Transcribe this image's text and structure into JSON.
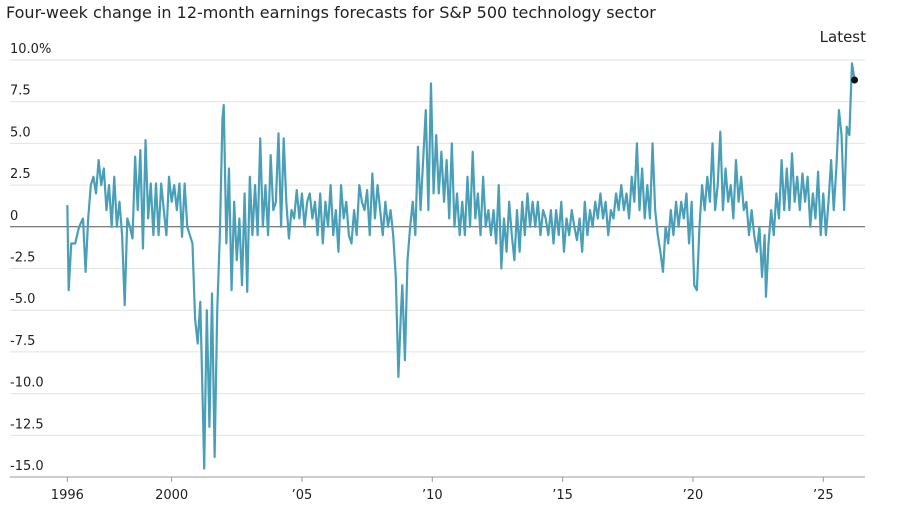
{
  "chart_data": {
    "type": "line",
    "title": "Four-week change in 12-month earnings forecasts for S&P 500 technology sector",
    "annotations": [
      {
        "text": "Latest"
      }
    ],
    "color": "#4a9fb8",
    "grid": true,
    "xlim": [
      1993.8,
      2026.6
    ],
    "xticks": [
      1996,
      2000,
      {
        "value": 2005,
        "label": "’05"
      },
      {
        "value": 2010,
        "label": "’10"
      },
      {
        "value": 2015,
        "label": "’15"
      },
      {
        "value": 2020,
        "label": "’20"
      },
      {
        "value": 2025,
        "label": "’25"
      }
    ],
    "ylim": [
      -15,
      10
    ],
    "yticks": [
      {
        "value": 10,
        "label": "10.0%"
      },
      7.5,
      {
        "value": 5,
        "label": "5.0"
      },
      2.5,
      0,
      -2.5,
      {
        "value": -5,
        "label": "-5.0"
      },
      -7.5,
      {
        "value": -10,
        "label": "-10.0"
      },
      -12.5,
      {
        "value": -15,
        "label": "-15.0"
      }
    ],
    "x": [
      1996.0,
      1996.05,
      1996.15,
      1996.3,
      1996.45,
      1996.6,
      1996.7,
      1996.8,
      1996.9,
      1997.0,
      1997.1,
      1997.2,
      1997.3,
      1997.4,
      1997.5,
      1997.6,
      1997.7,
      1997.8,
      1997.9,
      1998.0,
      1998.1,
      1998.2,
      1998.3,
      1998.4,
      1998.5,
      1998.6,
      1998.7,
      1998.8,
      1998.9,
      1999.0,
      1999.1,
      1999.2,
      1999.3,
      1999.4,
      1999.5,
      1999.6,
      1999.7,
      1999.8,
      1999.9,
      2000.0,
      2000.1,
      2000.2,
      2000.3,
      2000.4,
      2000.5,
      2000.6,
      2000.7,
      2000.8,
      2000.9,
      2001.0,
      2001.1,
      2001.2,
      2001.25,
      2001.35,
      2001.45,
      2001.55,
      2001.65,
      2001.75,
      2001.85,
      2001.95,
      2002.0,
      2002.1,
      2002.2,
      2002.3,
      2002.4,
      2002.5,
      2002.6,
      2002.7,
      2002.8,
      2002.9,
      2003.0,
      2003.1,
      2003.2,
      2003.3,
      2003.4,
      2003.5,
      2003.6,
      2003.7,
      2003.8,
      2003.9,
      2004.0,
      2004.1,
      2004.2,
      2004.3,
      2004.4,
      2004.5,
      2004.6,
      2004.7,
      2004.8,
      2004.9,
      2005.0,
      2005.1,
      2005.2,
      2005.3,
      2005.4,
      2005.5,
      2005.6,
      2005.7,
      2005.8,
      2005.9,
      2006.0,
      2006.1,
      2006.2,
      2006.3,
      2006.4,
      2006.5,
      2006.6,
      2006.7,
      2006.8,
      2006.9,
      2007.0,
      2007.1,
      2007.2,
      2007.3,
      2007.4,
      2007.5,
      2007.6,
      2007.7,
      2007.8,
      2007.9,
      2008.0,
      2008.1,
      2008.2,
      2008.3,
      2008.4,
      2008.5,
      2008.6,
      2008.7,
      2008.8,
      2008.85,
      2008.95,
      2009.05,
      2009.15,
      2009.25,
      2009.35,
      2009.45,
      2009.55,
      2009.65,
      2009.75,
      2009.85,
      2009.95,
      2010.05,
      2010.15,
      2010.25,
      2010.35,
      2010.45,
      2010.55,
      2010.65,
      2010.75,
      2010.85,
      2010.95,
      2011.05,
      2011.15,
      2011.25,
      2011.35,
      2011.45,
      2011.55,
      2011.65,
      2011.75,
      2011.85,
      2011.95,
      2012.05,
      2012.15,
      2012.25,
      2012.35,
      2012.45,
      2012.55,
      2012.65,
      2012.75,
      2012.85,
      2012.95,
      2013.05,
      2013.15,
      2013.25,
      2013.35,
      2013.45,
      2013.55,
      2013.65,
      2013.75,
      2013.85,
      2013.95,
      2014.05,
      2014.15,
      2014.25,
      2014.35,
      2014.45,
      2014.55,
      2014.65,
      2014.75,
      2014.85,
      2014.95,
      2015.05,
      2015.15,
      2015.25,
      2015.35,
      2015.45,
      2015.55,
      2015.65,
      2015.75,
      2015.85,
      2015.95,
      2016.05,
      2016.15,
      2016.25,
      2016.35,
      2016.45,
      2016.55,
      2016.65,
      2016.75,
      2016.85,
      2016.95,
      2017.05,
      2017.15,
      2017.25,
      2017.35,
      2017.45,
      2017.55,
      2017.65,
      2017.75,
      2017.85,
      2017.95,
      2018.05,
      2018.15,
      2018.25,
      2018.35,
      2018.45,
      2018.55,
      2018.65,
      2018.75,
      2018.85,
      2018.95,
      2019.05,
      2019.15,
      2019.25,
      2019.35,
      2019.45,
      2019.55,
      2019.65,
      2019.75,
      2019.85,
      2019.95,
      2020.05,
      2020.15,
      2020.25,
      2020.35,
      2020.45,
      2020.55,
      2020.65,
      2020.75,
      2020.85,
      2020.95,
      2021.05,
      2021.15,
      2021.25,
      2021.35,
      2021.45,
      2021.55,
      2021.65,
      2021.75,
      2021.85,
      2021.95,
      2022.05,
      2022.15,
      2022.25,
      2022.35,
      2022.45,
      2022.55,
      2022.65,
      2022.75,
      2022.8,
      2022.9,
      2023.0,
      2023.1,
      2023.2,
      2023.3,
      2023.4,
      2023.5,
      2023.6,
      2023.7,
      2023.8,
      2023.9,
      2024.0,
      2024.1,
      2024.2,
      2024.3,
      2024.4,
      2024.5,
      2024.6,
      2024.7,
      2024.8,
      2024.9,
      2025.0,
      2025.1,
      2025.2,
      2025.3,
      2025.4,
      2025.5,
      2025.6,
      2025.7,
      2025.8,
      2025.9,
      2026.0,
      2026.1,
      2026.2
    ],
    "values": [
      1.3,
      -3.8,
      -1,
      -1,
      0,
      0.5,
      -2.7,
      0.5,
      2.5,
      3,
      2,
      4,
      2.5,
      3.5,
      1,
      2.5,
      0,
      3,
      0,
      1.5,
      -0.5,
      -4.7,
      0.5,
      0,
      -0.7,
      4.2,
      1,
      4.6,
      -1.3,
      5.2,
      0.5,
      2.6,
      -0.5,
      2.6,
      -0.5,
      2.6,
      1,
      -0.5,
      3,
      1.5,
      2.5,
      1,
      2.6,
      -0.6,
      2.6,
      0,
      -0.5,
      -1,
      -5.5,
      -7,
      -4.5,
      -11,
      -14.5,
      -5,
      -12,
      -4,
      -13.8,
      -5,
      -0.5,
      6.5,
      7.3,
      -1,
      3.5,
      -3.8,
      1.5,
      -2,
      0.5,
      -3.5,
      2,
      -3.9,
      3,
      -0.5,
      2.5,
      -0.5,
      5.3,
      0,
      2.5,
      -0.5,
      4.3,
      1,
      1.5,
      5.6,
      0,
      5.3,
      1.5,
      -0.7,
      1,
      0.5,
      2.2,
      0.5,
      2,
      0,
      1.5,
      2,
      0.5,
      1.5,
      -0.5,
      2,
      -1,
      1.5,
      0,
      2.5,
      -0.5,
      1,
      -1.5,
      2.5,
      0.5,
      1.5,
      -0.5,
      -1,
      1,
      -0.5,
      2.5,
      1.5,
      1,
      2.2,
      -0.5,
      3.2,
      0.5,
      2.5,
      1,
      -0.5,
      1.5,
      0,
      1,
      -0.5,
      -3,
      -9,
      -5,
      -3.5,
      -8,
      -2,
      0,
      1.5,
      -0.5,
      4.8,
      1,
      4,
      7,
      1,
      8.6,
      2,
      5.5,
      2,
      4.5,
      1.5,
      4,
      0.5,
      5,
      0,
      2,
      -0.5,
      1.5,
      -0.5,
      3,
      0,
      4.5,
      0.5,
      2,
      -0.5,
      3,
      0,
      1,
      -0.5,
      1,
      -1,
      2.5,
      -2.5,
      0.5,
      -1.5,
      1.5,
      -0.5,
      -2,
      1,
      -1.5,
      1.5,
      -0.5,
      2,
      0,
      1.5,
      0,
      1.5,
      -0.5,
      1,
      0.5,
      -0.5,
      1,
      -1,
      1,
      -0.5,
      1.5,
      -1.5,
      0.5,
      -0.5,
      1,
      0,
      -0.8,
      0.5,
      -1.5,
      1.5,
      -0.5,
      1,
      0,
      1.5,
      0.5,
      2,
      0.5,
      1.5,
      -0.5,
      1,
      0.5,
      2,
      1,
      2.5,
      1,
      2,
      0.5,
      3,
      1.5,
      5,
      1,
      3.5,
      0.5,
      2.5,
      0.5,
      5,
      1,
      -0.5,
      -1.5,
      -2.7,
      0,
      -1,
      1,
      -0.5,
      1.5,
      0,
      1.5,
      0.5,
      2,
      -1,
      1.5,
      -3.5,
      -3.8,
      0,
      2.5,
      1,
      3,
      1.5,
      5,
      1,
      2.5,
      5.7,
      1,
      3.5,
      1.5,
      2.5,
      0.5,
      4,
      1.5,
      3,
      1,
      1.5,
      -0.5,
      1,
      -0.5,
      -1.5,
      0,
      -3,
      -0.5,
      -4.2,
      -1,
      1,
      -0.5,
      2,
      0.5,
      4,
      1,
      3.5,
      1,
      4.4,
      1.5,
      3,
      1,
      3.2,
      1.5,
      3,
      0,
      2,
      0.5,
      3.3,
      -0.5,
      2,
      -0.5,
      1.5,
      4,
      1,
      3.5,
      7,
      5.5,
      1,
      6,
      5.5,
      9.8,
      8.8
    ]
  }
}
